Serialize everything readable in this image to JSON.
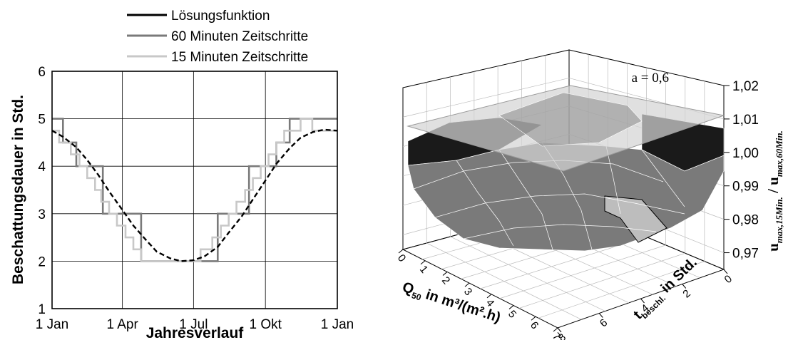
{
  "chart_data": [
    {
      "type": "line",
      "xlabel": "Jahresverlauf",
      "ylabel": "Beschattungsdauer in Std.",
      "x_tick_labels": [
        "1 Jan",
        "1 Apr",
        "1 Jul",
        "1 Okt",
        "1 Jan"
      ],
      "y_ticks": [
        1,
        2,
        3,
        4,
        5,
        6
      ],
      "ylim": [
        1,
        6
      ],
      "grid": true,
      "legend_position": "top",
      "series": [
        {
          "name": "Lösungsfunktion",
          "color": "#000000",
          "x": [
            "1 Jan",
            "15 Jan",
            "1 Feb",
            "15 Feb",
            "1 Mar",
            "15 Mar",
            "1 Apr",
            "15 Apr",
            "1 May",
            "15 May",
            "1 Jun",
            "15 Jun",
            "1 Jul",
            "15 Jul",
            "1 Aug",
            "15 Aug",
            "1 Sep",
            "15 Sep",
            "1 Okt",
            "15 Okt",
            "1 Nov",
            "15 Nov",
            "1 Dez",
            "15 Dez",
            "1 Jan"
          ],
          "y": [
            4.75,
            4.62,
            4.4,
            4.13,
            3.82,
            3.47,
            3.08,
            2.75,
            2.45,
            2.2,
            2.06,
            2.0,
            2.02,
            2.1,
            2.3,
            2.6,
            2.95,
            3.3,
            3.7,
            4.05,
            4.38,
            4.6,
            4.72,
            4.77,
            4.75
          ]
        },
        {
          "name": "60 Minuten Zeitschritte",
          "color": "#7a7a7a",
          "step": true,
          "x": [
            "1 Jan",
            "15 Jan",
            "15 Jan",
            "1 Feb",
            "1 Feb",
            "7 Mar",
            "7 Mar",
            "25 Apr",
            "25 Apr",
            "1 Aug",
            "1 Aug",
            "10 Sep",
            "10 Sep",
            "15 Okt",
            "15 Okt",
            "1 Nov",
            "1 Nov",
            "1 Jan"
          ],
          "y": [
            5,
            5,
            4.5,
            4.5,
            4,
            4,
            3,
            3,
            2,
            2,
            3,
            3,
            4,
            4,
            4.5,
            4.5,
            5,
            5
          ]
        },
        {
          "name": "15 Minuten Zeitschritte",
          "color": "#c8c8c8",
          "step": true,
          "x": [
            "1 Jan",
            "10 Jan",
            "10 Jan",
            "25 Jan",
            "25 Jan",
            "5 Feb",
            "5 Feb",
            "15 Feb",
            "15 Feb",
            "25 Feb",
            "25 Feb",
            "5 Mar",
            "5 Mar",
            "15 Mar",
            "15 Mar",
            "25 Mar",
            "25 Mar",
            "5 Apr",
            "5 Apr",
            "15 Apr",
            "15 Apr",
            "25 Apr",
            "25 Apr",
            "5 May",
            "5 May",
            "20 May",
            "20 May",
            "5 Jun",
            "5 Jun",
            "10 Jul",
            "10 Jul",
            "25 Jul",
            "25 Jul",
            "5 Aug",
            "5 Aug",
            "15 Aug",
            "15 Aug",
            "25 Aug",
            "25 Aug",
            "5 Sep",
            "5 Sep",
            "15 Sep",
            "15 Sep",
            "25 Sep",
            "25 Sep",
            "5 Okt",
            "5 Okt",
            "15 Okt",
            "15 Okt",
            "25 Okt",
            "25 Okt",
            "5 Nov",
            "5 Nov",
            "15 Nov",
            "15 Nov",
            "30 Nov",
            "30 Nov",
            "1 Jan"
          ],
          "y": [
            4.75,
            4.75,
            4.5,
            4.5,
            4.25,
            4.25,
            4.0,
            4.0,
            3.75,
            3.75,
            3.5,
            3.5,
            3.25,
            3.25,
            3.0,
            3.0,
            2.75,
            2.75,
            2.5,
            2.5,
            2.25,
            2.25,
            2.0,
            2.0,
            2.0,
            2.0,
            2.0,
            2.0,
            2.0,
            2.0,
            2.25,
            2.25,
            2.5,
            2.5,
            2.75,
            2.75,
            3.0,
            3.0,
            3.25,
            3.25,
            3.5,
            3.5,
            3.75,
            3.75,
            4.0,
            4.0,
            4.25,
            4.25,
            4.5,
            4.5,
            4.75,
            4.75,
            4.75,
            4.75,
            5.0,
            5.0,
            4.75,
            4.75
          ]
        }
      ]
    },
    {
      "type": "surface3d",
      "annotation": "a = 0,6",
      "x_axis": {
        "label_main": "Q",
        "label_sub": "50",
        "label_rest": " in m³/(m².h)",
        "ticks": [
          0,
          1,
          2,
          3,
          4,
          5,
          6,
          7
        ]
      },
      "y_axis": {
        "label_main": "t",
        "label_sub": "beschl.",
        "label_rest": " in Std.",
        "ticks": [
          0,
          2,
          4,
          6,
          8
        ]
      },
      "z_axis": {
        "label_num_main": "u",
        "label_num_sub": "max,15Min.",
        "label_sep": " / ",
        "label_den_main": "u",
        "label_den_sub": "max,60Min.",
        "ticks": [
          "0,97",
          "0,98",
          "0,99",
          "1,00",
          "1,01",
          "1,02"
        ],
        "range": [
          0.965,
          1.02
        ]
      },
      "reference_plane": {
        "value": 1.0,
        "color": "#d4d4d4"
      },
      "surface_color": "#7a7a7a",
      "grid": true
    }
  ]
}
